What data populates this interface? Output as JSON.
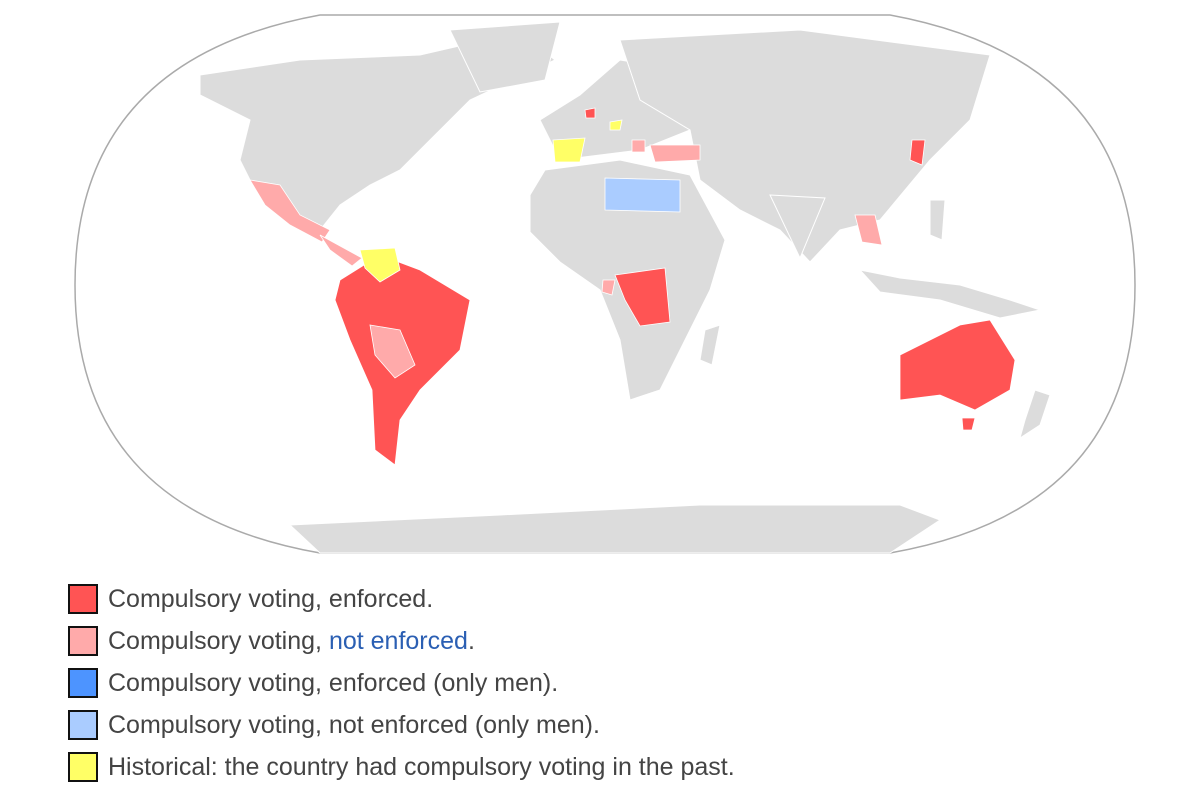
{
  "legend": {
    "items": [
      {
        "text": "Compulsory voting, enforced.",
        "color": "#ff5454"
      },
      {
        "parts": [
          "Compulsory voting, ",
          "not enforced",
          "."
        ],
        "color": "#ffaaaa"
      },
      {
        "text": "Compulsory voting, enforced (only men).",
        "color": "#4d94ff"
      },
      {
        "text": "Compulsory voting, not enforced (only men).",
        "color": "#aaccff"
      },
      {
        "text": "Historical: the country had compulsory voting in the past.",
        "color": "#ffff66"
      }
    ]
  }
}
